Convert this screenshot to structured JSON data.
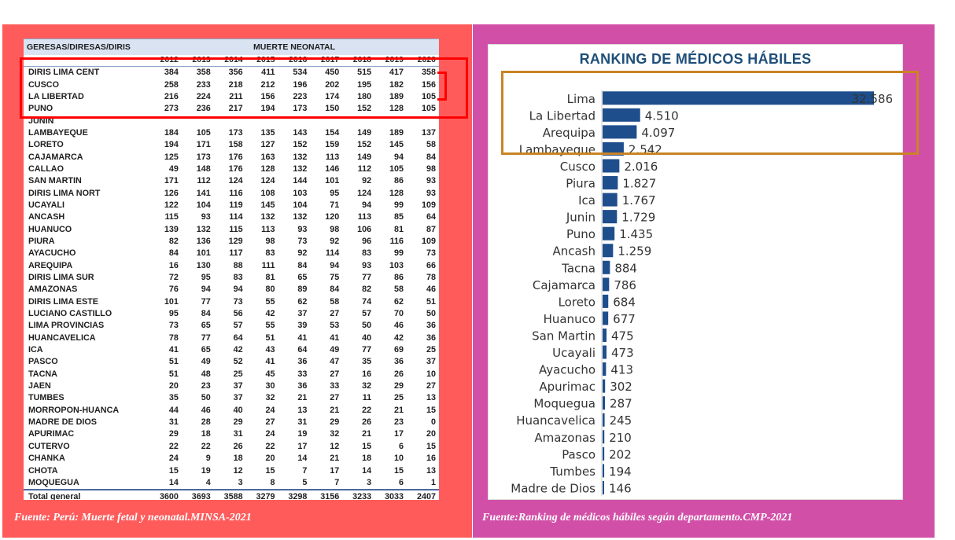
{
  "left_panel": {
    "caption": "Fuente: Perú: Muerte fetal y neonatal.MINSA-2021",
    "table": {
      "row_header": "GERESAS/DIRESAS/DIRIS",
      "group_header": "MUERTE NEONATAL",
      "years": [
        "2012",
        "2013",
        "2014",
        "2015",
        "2016",
        "2017",
        "2018",
        "2019",
        "2020"
      ],
      "rows": [
        {
          "name": "DIRIS LIMA CENT",
          "v": [
            "384",
            "358",
            "356",
            "411",
            "534",
            "450",
            "515",
            "417",
            "358"
          ]
        },
        {
          "name": "CUSCO",
          "v": [
            "258",
            "233",
            "218",
            "212",
            "196",
            "202",
            "195",
            "182",
            "156"
          ]
        },
        {
          "name": "LA LIBERTAD",
          "v": [
            "216",
            "224",
            "211",
            "156",
            "223",
            "174",
            "180",
            "189",
            "105"
          ]
        },
        {
          "name": "PUNO",
          "v": [
            "273",
            "236",
            "217",
            "194",
            "173",
            "150",
            "152",
            "128",
            "105"
          ]
        },
        {
          "name": "JUNIN",
          "v": [
            "",
            "",
            "",
            "",
            "",
            "",
            "",
            "",
            ""
          ]
        },
        {
          "name": "LAMBAYEQUE",
          "v": [
            "184",
            "105",
            "173",
            "135",
            "143",
            "154",
            "149",
            "189",
            "137"
          ]
        },
        {
          "name": "LORETO",
          "v": [
            "194",
            "171",
            "158",
            "127",
            "152",
            "159",
            "152",
            "145",
            "58"
          ]
        },
        {
          "name": "CAJAMARCA",
          "v": [
            "125",
            "173",
            "176",
            "163",
            "132",
            "113",
            "149",
            "94",
            "84"
          ]
        },
        {
          "name": "CALLAO",
          "v": [
            "49",
            "148",
            "176",
            "128",
            "132",
            "146",
            "112",
            "105",
            "98"
          ]
        },
        {
          "name": "SAN MARTIN",
          "v": [
            "171",
            "112",
            "124",
            "124",
            "144",
            "101",
            "92",
            "86",
            "93"
          ]
        },
        {
          "name": "DIRIS LIMA NORT",
          "v": [
            "126",
            "141",
            "116",
            "108",
            "103",
            "95",
            "124",
            "128",
            "93"
          ]
        },
        {
          "name": "UCAYALI",
          "v": [
            "122",
            "104",
            "119",
            "145",
            "104",
            "71",
            "94",
            "99",
            "109"
          ]
        },
        {
          "name": "ANCASH",
          "v": [
            "115",
            "93",
            "114",
            "132",
            "132",
            "120",
            "113",
            "85",
            "64"
          ]
        },
        {
          "name": "HUANUCO",
          "v": [
            "139",
            "132",
            "115",
            "113",
            "93",
            "98",
            "106",
            "81",
            "87"
          ]
        },
        {
          "name": "PIURA",
          "v": [
            "82",
            "136",
            "129",
            "98",
            "73",
            "92",
            "96",
            "116",
            "109"
          ]
        },
        {
          "name": "AYACUCHO",
          "v": [
            "84",
            "101",
            "117",
            "83",
            "92",
            "114",
            "83",
            "99",
            "73"
          ]
        },
        {
          "name": "AREQUIPA",
          "v": [
            "16",
            "130",
            "88",
            "111",
            "84",
            "94",
            "93",
            "103",
            "66"
          ]
        },
        {
          "name": "DIRIS LIMA SUR",
          "v": [
            "72",
            "95",
            "83",
            "81",
            "65",
            "75",
            "77",
            "86",
            "78"
          ]
        },
        {
          "name": "AMAZONAS",
          "v": [
            "76",
            "94",
            "94",
            "80",
            "89",
            "84",
            "82",
            "58",
            "46"
          ]
        },
        {
          "name": "DIRIS LIMA ESTE",
          "v": [
            "101",
            "77",
            "73",
            "55",
            "62",
            "58",
            "74",
            "62",
            "51"
          ]
        },
        {
          "name": "LUCIANO CASTILLO",
          "v": [
            "95",
            "84",
            "56",
            "42",
            "37",
            "27",
            "57",
            "70",
            "50"
          ]
        },
        {
          "name": "LIMA PROVINCIAS",
          "v": [
            "73",
            "65",
            "57",
            "55",
            "39",
            "53",
            "50",
            "46",
            "36"
          ]
        },
        {
          "name": "HUANCAVELICA",
          "v": [
            "78",
            "77",
            "64",
            "51",
            "41",
            "41",
            "40",
            "42",
            "36"
          ]
        },
        {
          "name": "ICA",
          "v": [
            "41",
            "65",
            "42",
            "43",
            "64",
            "49",
            "77",
            "69",
            "25"
          ]
        },
        {
          "name": "PASCO",
          "v": [
            "51",
            "49",
            "52",
            "41",
            "36",
            "47",
            "35",
            "36",
            "37"
          ]
        },
        {
          "name": "TACNA",
          "v": [
            "51",
            "48",
            "25",
            "45",
            "33",
            "27",
            "16",
            "26",
            "10"
          ]
        },
        {
          "name": "JAEN",
          "v": [
            "20",
            "23",
            "37",
            "30",
            "36",
            "33",
            "32",
            "29",
            "27"
          ]
        },
        {
          "name": "TUMBES",
          "v": [
            "35",
            "50",
            "37",
            "32",
            "21",
            "27",
            "11",
            "25",
            "13"
          ]
        },
        {
          "name": "MORROPON-HUANCA",
          "v": [
            "44",
            "46",
            "40",
            "24",
            "13",
            "21",
            "22",
            "21",
            "15"
          ]
        },
        {
          "name": "MADRE DE DIOS",
          "v": [
            "31",
            "28",
            "29",
            "27",
            "31",
            "29",
            "26",
            "23",
            "0"
          ]
        },
        {
          "name": "APURIMAC",
          "v": [
            "29",
            "18",
            "31",
            "24",
            "19",
            "32",
            "21",
            "17",
            "20"
          ]
        },
        {
          "name": "CUTERVO",
          "v": [
            "22",
            "22",
            "26",
            "22",
            "17",
            "12",
            "15",
            "6",
            "15"
          ]
        },
        {
          "name": "CHANKA",
          "v": [
            "24",
            "9",
            "18",
            "20",
            "14",
            "21",
            "18",
            "10",
            "16"
          ]
        },
        {
          "name": "CHOTA",
          "v": [
            "15",
            "19",
            "12",
            "15",
            "7",
            "17",
            "14",
            "15",
            "13"
          ]
        },
        {
          "name": "MOQUEGUA",
          "v": [
            "14",
            "4",
            "3",
            "8",
            "5",
            "7",
            "3",
            "6",
            "1"
          ]
        }
      ],
      "total": {
        "name": "Total general",
        "v": [
          "3600",
          "3693",
          "3588",
          "3279",
          "3298",
          "3156",
          "3233",
          "3033",
          "2407"
        ]
      }
    }
  },
  "right_panel": {
    "caption": "Fuente:Ranking de médicos hábiles según departamento.CMP-2021"
  },
  "chart_data": {
    "type": "bar",
    "orientation": "horizontal",
    "title": "RANKING DE MÉDICOS HÁBILES",
    "bar_color": "#1f4e8c",
    "categories": [
      "Lima",
      "La Libertad",
      "Arequipa",
      "Lambayeque",
      "Cusco",
      "Piura",
      "Ica",
      "Junin",
      "Puno",
      "Ancash",
      "Tacna",
      "Cajamarca",
      "Loreto",
      "Huanuco",
      "San Martin",
      "Ucayali",
      "Ayacucho",
      "Apurimac",
      "Moquegua",
      "Huancavelica",
      "Amazonas",
      "Pasco",
      "Tumbes",
      "Madre de Dios"
    ],
    "values": [
      32586,
      4510,
      4097,
      2542,
      2016,
      1827,
      1767,
      1729,
      1435,
      1259,
      884,
      786,
      684,
      677,
      475,
      473,
      413,
      302,
      287,
      245,
      210,
      202,
      194,
      146
    ],
    "labels": [
      "32.586",
      "4.510",
      "4.097",
      "2.542",
      "2.016",
      "1.827",
      "1.767",
      "1.729",
      "1.435",
      "1.259",
      "884",
      "786",
      "684",
      "677",
      "475",
      "473",
      "413",
      "302",
      "287",
      "245",
      "210",
      "202",
      "194",
      "146"
    ],
    "grid": false,
    "legend": "none"
  }
}
